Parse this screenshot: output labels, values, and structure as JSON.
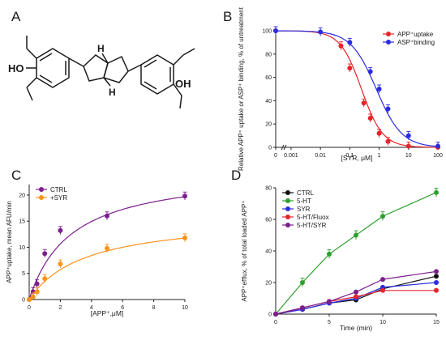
{
  "panels": {
    "A": {
      "letter": "A"
    },
    "B": {
      "letter": "B"
    },
    "C": {
      "letter": "C"
    },
    "D": {
      "letter": "D"
    }
  },
  "molecule": {
    "atoms": {
      "ho_left": "HO",
      "oh_right": "OH",
      "h_top": "H",
      "h_bottom": "H"
    }
  },
  "chart_data": [
    {
      "panel": "B",
      "type": "line",
      "xscale": "log",
      "xlabel": "[SYR, μM]",
      "ylabel": "Relative APP⁺ uptake or ASP⁺ binding, % of untreatment",
      "xlim": [
        0.0003,
        100
      ],
      "ylim": [
        0,
        100
      ],
      "x_ticks": [
        "0",
        "0.001",
        "0.01",
        "0.1",
        "1",
        "10",
        "100"
      ],
      "y_ticks": [
        "0",
        "20",
        "40",
        "60",
        "80",
        "100"
      ],
      "legend_position": "top-right",
      "series": [
        {
          "name": "APP⁺uptake",
          "color": "#e8242b",
          "points": [
            {
              "x": 0.0003,
              "y": 100
            },
            {
              "x": 0.05,
              "y": 87
            },
            {
              "x": 0.1,
              "y": 68
            },
            {
              "x": 0.3,
              "y": 38
            },
            {
              "x": 0.5,
              "y": 25
            },
            {
              "x": 1,
              "y": 12
            },
            {
              "x": 2,
              "y": 5
            },
            {
              "x": 10,
              "y": 1
            },
            {
              "x": 100,
              "y": 0
            }
          ],
          "fit_ic50": 0.25,
          "fit_hill": 1.2
        },
        {
          "name": "ASP⁺binding",
          "color": "#2b2ce0",
          "points": [
            {
              "x": 0.0003,
              "y": 100
            },
            {
              "x": 0.01,
              "y": 99
            },
            {
              "x": 0.1,
              "y": 90
            },
            {
              "x": 0.5,
              "y": 65
            },
            {
              "x": 1,
              "y": 50
            },
            {
              "x": 2,
              "y": 33
            },
            {
              "x": 10,
              "y": 10
            },
            {
              "x": 100,
              "y": 1
            }
          ],
          "fit_ic50": 0.8,
          "fit_hill": 1.0
        }
      ]
    },
    {
      "panel": "C",
      "type": "scatter",
      "xlabel": "[APP⁺,μM]",
      "ylabel": "APP⁺uptake, mean AFU/min",
      "xlim": [
        0,
        10
      ],
      "ylim": [
        0,
        22
      ],
      "x_ticks": [
        "0",
        "2",
        "4",
        "6",
        "8",
        "10"
      ],
      "y_ticks": [
        "0",
        "5",
        "10",
        "15",
        "20"
      ],
      "legend_position": "top-left",
      "series": [
        {
          "name": "CTRL",
          "color": "#7b1f8c",
          "points": [
            {
              "x": 0,
              "y": 0
            },
            {
              "x": 0.25,
              "y": 1.5
            },
            {
              "x": 0.5,
              "y": 3
            },
            {
              "x": 1,
              "y": 8.8
            },
            {
              "x": 2,
              "y": 13.2
            },
            {
              "x": 5,
              "y": 16
            },
            {
              "x": 10,
              "y": 19.8
            }
          ],
          "fit_vmax": 25,
          "fit_km": 2.7
        },
        {
          "name": "+SYR",
          "color": "#f7941d",
          "points": [
            {
              "x": 0,
              "y": 0
            },
            {
              "x": 0.25,
              "y": 0.5
            },
            {
              "x": 0.5,
              "y": 1.5
            },
            {
              "x": 1,
              "y": 4
            },
            {
              "x": 2,
              "y": 6.8
            },
            {
              "x": 5,
              "y": 9.8
            },
            {
              "x": 10,
              "y": 11.8
            }
          ],
          "fit_vmax": 16,
          "fit_km": 3.6
        }
      ]
    },
    {
      "panel": "D",
      "type": "line",
      "xlabel": "Time (min)",
      "ylabel": "APP⁺efflux, % of total loaded APP⁺",
      "xlim": [
        0,
        15
      ],
      "ylim": [
        0,
        80
      ],
      "x_ticks": [
        "0",
        "5",
        "10",
        "15"
      ],
      "y_ticks": [
        "0",
        "20",
        "40",
        "60",
        "80"
      ],
      "legend_position": "top-left",
      "series": [
        {
          "name": "CTRL",
          "color": "#111111",
          "points": [
            {
              "x": 0,
              "y": 0
            },
            {
              "x": 2.5,
              "y": 3
            },
            {
              "x": 5,
              "y": 7
            },
            {
              "x": 7.5,
              "y": 9
            },
            {
              "x": 10,
              "y": 16
            },
            {
              "x": 15,
              "y": 24
            }
          ]
        },
        {
          "name": "5-HT",
          "color": "#2ca02c",
          "points": [
            {
              "x": 0,
              "y": 0
            },
            {
              "x": 2.5,
              "y": 20
            },
            {
              "x": 5,
              "y": 38
            },
            {
              "x": 7.5,
              "y": 50
            },
            {
              "x": 10,
              "y": 62
            },
            {
              "x": 15,
              "y": 77
            }
          ]
        },
        {
          "name": "SYR",
          "color": "#2b2ce0",
          "points": [
            {
              "x": 0,
              "y": 0
            },
            {
              "x": 2.5,
              "y": 3
            },
            {
              "x": 5,
              "y": 7
            },
            {
              "x": 7.5,
              "y": 10
            },
            {
              "x": 10,
              "y": 17
            },
            {
              "x": 15,
              "y": 20
            }
          ]
        },
        {
          "name": "5-HT/Fluox",
          "color": "#e8242b",
          "points": [
            {
              "x": 0,
              "y": 0
            },
            {
              "x": 2.5,
              "y": 4
            },
            {
              "x": 5,
              "y": 8
            },
            {
              "x": 7.5,
              "y": 11
            },
            {
              "x": 10,
              "y": 15
            },
            {
              "x": 15,
              "y": 15
            }
          ]
        },
        {
          "name": "5-HT/SYR",
          "color": "#7b1f8c",
          "points": [
            {
              "x": 0,
              "y": 0
            },
            {
              "x": 2.5,
              "y": 4
            },
            {
              "x": 5,
              "y": 8
            },
            {
              "x": 7.5,
              "y": 14
            },
            {
              "x": 10,
              "y": 22
            },
            {
              "x": 15,
              "y": 27
            }
          ]
        }
      ]
    }
  ]
}
